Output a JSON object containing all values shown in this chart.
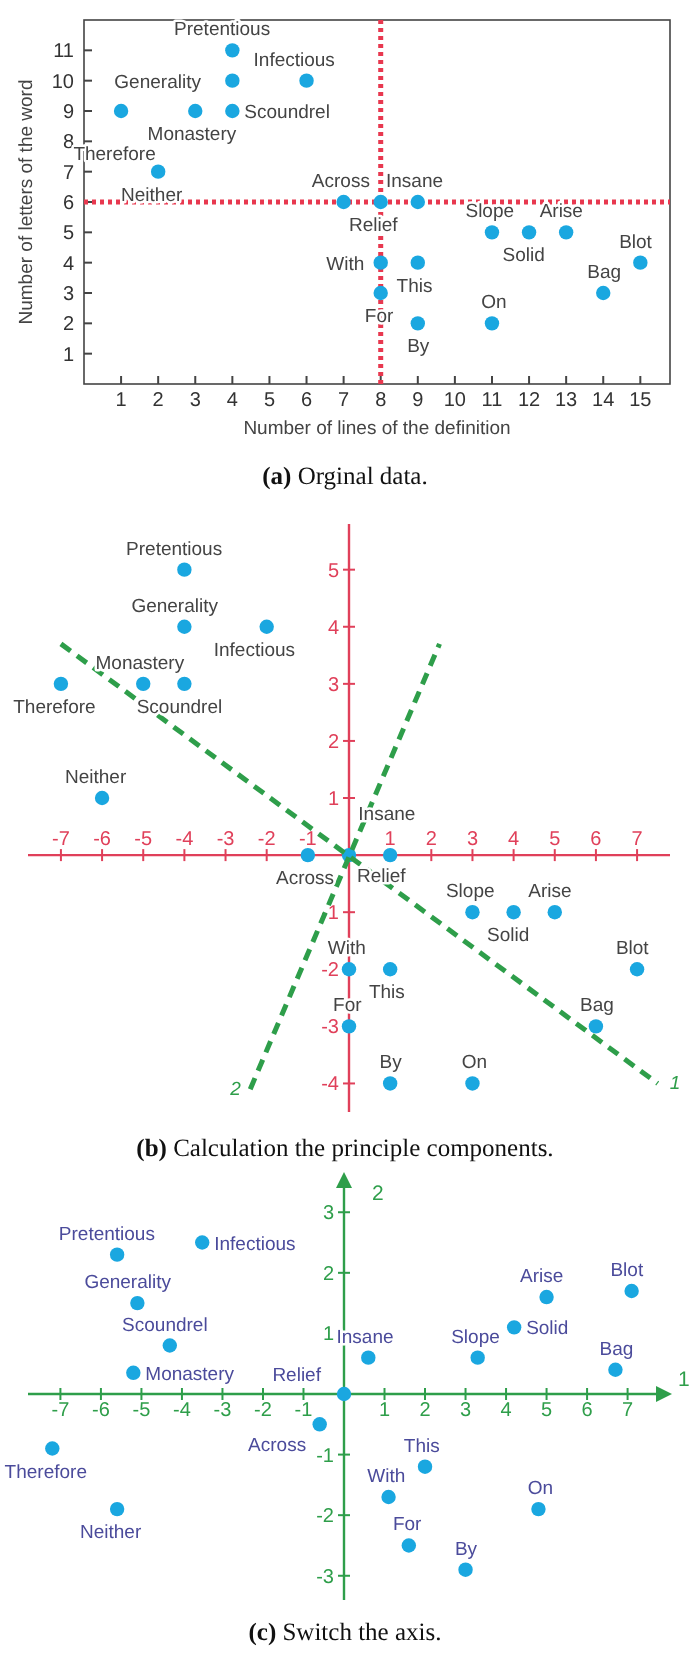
{
  "chart_data": [
    {
      "type": "scatter",
      "title": "(a) Orginal data.",
      "xlabel": "Number of lines of the definition",
      "ylabel": "Number of letters of the word",
      "xlim": [
        0,
        15.8
      ],
      "ylim": [
        0,
        12
      ],
      "xticks": [
        1,
        2,
        3,
        4,
        5,
        6,
        7,
        8,
        9,
        10,
        11,
        12,
        13,
        14,
        15
      ],
      "yticks": [
        1,
        2,
        3,
        4,
        5,
        6,
        7,
        8,
        9,
        10,
        11
      ],
      "grid": false,
      "legend": false,
      "marker": "circle",
      "ref_lines": [
        {
          "axis": "x",
          "value": 8,
          "color": "#e8384f",
          "line_style": "dotted"
        },
        {
          "axis": "y",
          "value": 6,
          "color": "#e8384f",
          "line_style": "dotted"
        }
      ],
      "series": [
        {
          "color": "#1aa7e0",
          "x": [
            4,
            4,
            6,
            3,
            4,
            1,
            2,
            7,
            8,
            9,
            11,
            12,
            13,
            15,
            8,
            9,
            8,
            9,
            11,
            14
          ],
          "values": [
            11,
            10,
            10,
            9,
            9,
            9,
            7,
            6,
            6,
            6,
            5,
            5,
            5,
            4,
            4,
            4,
            3,
            2,
            2,
            3
          ]
        }
      ],
      "annotations": [
        {
          "text": "Pretentious",
          "x": 4,
          "y": 11
        },
        {
          "text": "Generality",
          "x": 4,
          "y": 10
        },
        {
          "text": "Infectious",
          "x": 6,
          "y": 10
        },
        {
          "text": "Monastery",
          "x": 3,
          "y": 9
        },
        {
          "text": "Scoundrel",
          "x": 4,
          "y": 9
        },
        {
          "text": "Therefore",
          "x": 1,
          "y": 9
        },
        {
          "text": "Neither",
          "x": 2,
          "y": 7
        },
        {
          "text": "Across",
          "x": 7,
          "y": 6
        },
        {
          "text": "Relief",
          "x": 8,
          "y": 6
        },
        {
          "text": "Insane",
          "x": 9,
          "y": 6
        },
        {
          "text": "Slope",
          "x": 11,
          "y": 5
        },
        {
          "text": "Solid",
          "x": 12,
          "y": 5
        },
        {
          "text": "Arise",
          "x": 13,
          "y": 5
        },
        {
          "text": "Blot",
          "x": 15,
          "y": 4
        },
        {
          "text": "With",
          "x": 8,
          "y": 4
        },
        {
          "text": "This",
          "x": 9,
          "y": 4
        },
        {
          "text": "For",
          "x": 8,
          "y": 3
        },
        {
          "text": "By",
          "x": 9,
          "y": 2
        },
        {
          "text": "On",
          "x": 11,
          "y": 2
        },
        {
          "text": "Bag",
          "x": 14,
          "y": 3
        }
      ]
    },
    {
      "type": "scatter",
      "title": "(b) Calculation the principle components.",
      "xlim": [
        -7.8,
        7.8
      ],
      "ylim": [
        -4.5,
        5.8
      ],
      "xticks": [
        -7,
        -6,
        -5,
        -4,
        -3,
        -2,
        -1,
        1,
        2,
        3,
        4,
        5,
        6,
        7
      ],
      "yticks": [
        -4,
        -3,
        -2,
        -1,
        1,
        2,
        3,
        4,
        5
      ],
      "grid": false,
      "legend": false,
      "marker": "circle",
      "series": [
        {
          "color": "#1aa7e0",
          "x": [
            -4,
            -4,
            -2,
            -5,
            -4,
            -7,
            -6,
            -1,
            0,
            1,
            3,
            4,
            5,
            7,
            0,
            1,
            0,
            1,
            3,
            6
          ],
          "values": [
            5,
            4,
            4,
            3,
            3,
            3,
            1,
            0,
            0,
            0,
            -1,
            -1,
            -1,
            -2,
            -2,
            -2,
            -3,
            -4,
            -4,
            -3
          ]
        },
        {
          "type": "line",
          "name": "1",
          "color": "#2e9e4a",
          "line_style": "dashed",
          "marker": "none",
          "x": [
            -7,
            7.5
          ],
          "values": [
            3.7,
            -4.0
          ]
        },
        {
          "type": "line",
          "name": "2",
          "color": "#2e9e4a",
          "line_style": "dashed",
          "marker": "none",
          "x": [
            -2.4,
            2.2
          ],
          "values": [
            -4.1,
            3.7
          ]
        }
      ],
      "annotations": [
        {
          "text": "Pretentious",
          "x": -4,
          "y": 5
        },
        {
          "text": "Generality",
          "x": -4,
          "y": 4
        },
        {
          "text": "Infectious",
          "x": -2,
          "y": 4
        },
        {
          "text": "Monastery",
          "x": -5,
          "y": 3
        },
        {
          "text": "Scoundrel",
          "x": -4,
          "y": 3
        },
        {
          "text": "Therefore",
          "x": -7,
          "y": 3
        },
        {
          "text": "Neither",
          "x": -6,
          "y": 1
        },
        {
          "text": "Across",
          "x": -1,
          "y": 0
        },
        {
          "text": "Relief",
          "x": 0,
          "y": 0
        },
        {
          "text": "Insane",
          "x": 1,
          "y": 0
        },
        {
          "text": "Slope",
          "x": 3,
          "y": -1
        },
        {
          "text": "Solid",
          "x": 4,
          "y": -1
        },
        {
          "text": "Arise",
          "x": 5,
          "y": -1
        },
        {
          "text": "Blot",
          "x": 7,
          "y": -2
        },
        {
          "text": "With",
          "x": 0,
          "y": -2
        },
        {
          "text": "This",
          "x": 1,
          "y": -2
        },
        {
          "text": "For",
          "x": 0,
          "y": -3
        },
        {
          "text": "By",
          "x": 1,
          "y": -4
        },
        {
          "text": "On",
          "x": 3,
          "y": -4
        },
        {
          "text": "Bag",
          "x": 6,
          "y": -3
        }
      ]
    },
    {
      "type": "scatter",
      "title": "(c) Switch the axis.",
      "xlabel": "1",
      "ylabel": "2",
      "xlim": [
        -7.8,
        7.8
      ],
      "ylim": [
        -3.4,
        3.4
      ],
      "xticks": [
        -7,
        -6,
        -5,
        -4,
        -3,
        -2,
        -1,
        1,
        2,
        3,
        4,
        5,
        6,
        7
      ],
      "yticks": [
        -3,
        -2,
        -1,
        1,
        2,
        3
      ],
      "grid": false,
      "legend": false,
      "marker": "circle",
      "series": [
        {
          "color": "#1aa7e0",
          "x": [
            -5.6,
            -5.1,
            -3.5,
            -5.2,
            -4.3,
            -7.2,
            -5.6,
            -0.6,
            0,
            0.6,
            3.3,
            4.2,
            5.0,
            7.1,
            1.1,
            2.0,
            1.6,
            3.0,
            4.8,
            6.7
          ],
          "values": [
            2.3,
            1.5,
            2.5,
            0.35,
            0.8,
            -0.9,
            -1.9,
            -0.5,
            0,
            0.6,
            0.6,
            1.1,
            1.6,
            1.7,
            -1.7,
            -1.2,
            -2.5,
            -2.9,
            -1.9,
            0.4
          ]
        }
      ],
      "annotations": [
        {
          "text": "Pretentious",
          "x": -5.6,
          "y": 2.3
        },
        {
          "text": "Generality",
          "x": -5.1,
          "y": 1.5
        },
        {
          "text": "Infectious",
          "x": -3.5,
          "y": 2.5
        },
        {
          "text": "Monastery",
          "x": -5.2,
          "y": 0.35
        },
        {
          "text": "Scoundrel",
          "x": -4.3,
          "y": 0.8
        },
        {
          "text": "Therefore",
          "x": -7.2,
          "y": -0.9
        },
        {
          "text": "Neither",
          "x": -5.6,
          "y": -1.9
        },
        {
          "text": "Across",
          "x": -0.6,
          "y": -0.5
        },
        {
          "text": "Relief",
          "x": 0,
          "y": 0
        },
        {
          "text": "Insane",
          "x": 0.6,
          "y": 0.6
        },
        {
          "text": "Slope",
          "x": 3.3,
          "y": 0.6
        },
        {
          "text": "Solid",
          "x": 4.2,
          "y": 1.1
        },
        {
          "text": "Arise",
          "x": 5.0,
          "y": 1.6
        },
        {
          "text": "Blot",
          "x": 7.1,
          "y": 1.7
        },
        {
          "text": "With",
          "x": 1.1,
          "y": -1.7
        },
        {
          "text": "This",
          "x": 2.0,
          "y": -1.2
        },
        {
          "text": "For",
          "x": 1.6,
          "y": -2.5
        },
        {
          "text": "By",
          "x": 3.0,
          "y": -2.9
        },
        {
          "text": "On",
          "x": 4.8,
          "y": -1.9
        },
        {
          "text": "Bag",
          "x": 6.7,
          "y": 0.4
        }
      ]
    }
  ]
}
